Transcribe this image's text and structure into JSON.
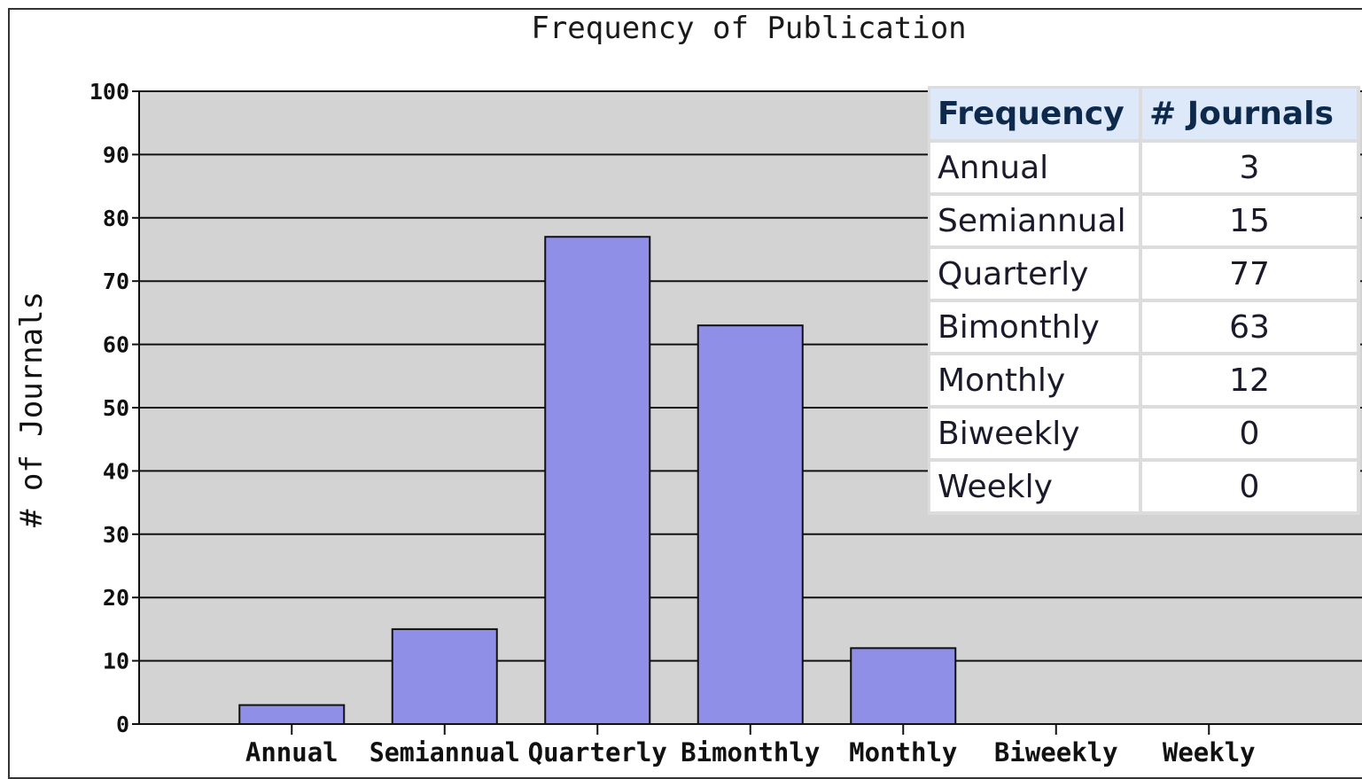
{
  "chart_data": {
    "type": "bar",
    "title": "Frequency of Publication",
    "xlabel": "",
    "ylabel": "# of Journals",
    "categories": [
      "Annual",
      "Semiannual",
      "Quarterly",
      "Bimonthly",
      "Monthly",
      "Biweekly",
      "Weekly"
    ],
    "values": [
      3,
      15,
      77,
      63,
      12,
      0,
      0
    ],
    "ylim": [
      0,
      100
    ],
    "yticks": [
      0,
      10,
      20,
      30,
      40,
      50,
      60,
      70,
      80,
      90,
      100
    ],
    "grid": true,
    "bar_color": "#8f8fe8",
    "plot_background": "#d3d3d3"
  },
  "table": {
    "headers": [
      "Frequency",
      "# Journals"
    ],
    "rows": [
      {
        "label": "Annual",
        "count": "3"
      },
      {
        "label": "Semiannual",
        "count": "15"
      },
      {
        "label": "Quarterly",
        "count": "77"
      },
      {
        "label": "Bimonthly",
        "count": "63"
      },
      {
        "label": "Monthly",
        "count": "12"
      },
      {
        "label": "Biweekly",
        "count": "0"
      },
      {
        "label": "Weekly",
        "count": "0"
      }
    ]
  }
}
